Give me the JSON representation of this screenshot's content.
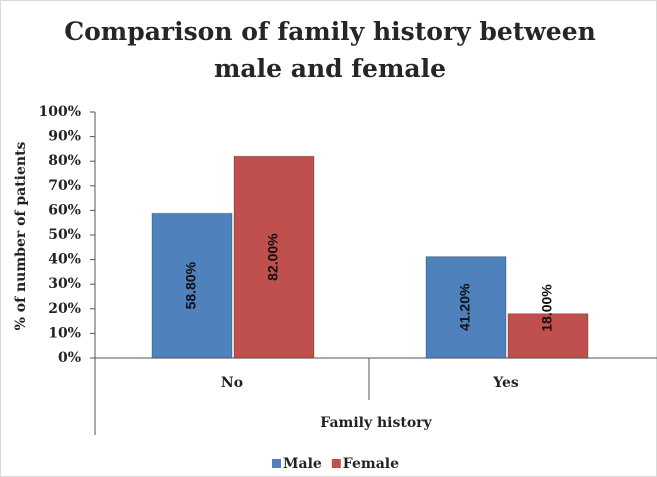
{
  "chart_data": {
    "type": "bar",
    "title": "Comparison of family history between male and female",
    "x_label": "Family history",
    "y_label": "% of number of patients",
    "categories": [
      "No",
      "Yes"
    ],
    "series": [
      {
        "name": "Male",
        "color": "#4f81bd",
        "values": [
          58.8,
          41.2
        ],
        "value_labels": [
          "58.80%",
          "41.20%"
        ]
      },
      {
        "name": "Female",
        "color": "#c0504d",
        "values": [
          82,
          18
        ],
        "value_labels": [
          "82.00%",
          "18.00%"
        ]
      }
    ],
    "ylim": [
      0,
      100
    ],
    "yticks": [
      {
        "value": 0,
        "label": "0%"
      },
      {
        "value": 10,
        "label": "10%"
      },
      {
        "value": 20,
        "label": "20%"
      },
      {
        "value": 30,
        "label": "30%"
      },
      {
        "value": 40,
        "label": "40%"
      },
      {
        "value": 50,
        "label": "50%"
      },
      {
        "value": 60,
        "label": "60%"
      },
      {
        "value": 70,
        "label": "70%"
      },
      {
        "value": 80,
        "label": "80%"
      },
      {
        "value": 90,
        "label": "90%"
      },
      {
        "value": 100,
        "label": "100%"
      }
    ],
    "legend": "bottom"
  }
}
